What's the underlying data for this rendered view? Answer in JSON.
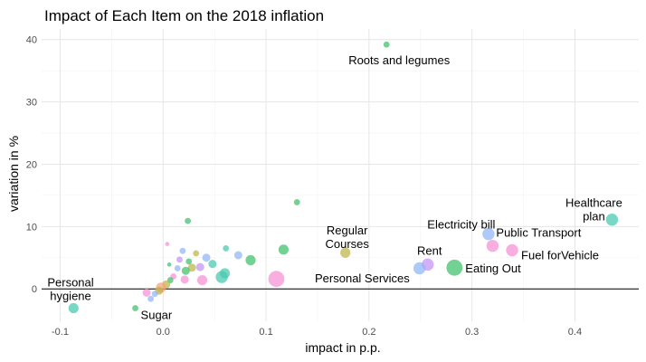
{
  "chart_data": {
    "type": "scatter",
    "title": "Impact of Each Item on the 2018 inflation",
    "xlabel": "impact in p.p.",
    "ylabel": "variation in %",
    "xlim": [
      -0.118,
      0.462
    ],
    "ylim": [
      -5.2,
      41.7
    ],
    "x_ticks": [
      -0.1,
      0.0,
      0.1,
      0.2,
      0.3,
      0.4
    ],
    "x_tick_labels": [
      "-0.1",
      "0.0",
      "0.1",
      "0.2",
      "0.3",
      "0.4"
    ],
    "y_ticks": [
      0,
      10,
      20,
      30,
      40
    ],
    "y_tick_labels": [
      "0",
      "10",
      "20",
      "30",
      "40"
    ],
    "grid": true,
    "hline_y": 0,
    "legend": "none",
    "points": [
      {
        "label": "Roots and legumes",
        "x": 0.217,
        "y": 39.2,
        "size": 2,
        "color": "#3dbf6b"
      },
      {
        "label": "",
        "x": 0.13,
        "y": 13.9,
        "size": 2,
        "color": "#3dbf6b"
      },
      {
        "label": "",
        "x": 0.024,
        "y": 10.9,
        "size": 2,
        "color": "#3dbf6b"
      },
      {
        "label": "Healthcare plan",
        "x": 0.436,
        "y": 11.1,
        "size": 5,
        "color": "#45c9ae"
      },
      {
        "label": "Electricity bill",
        "x": 0.316,
        "y": 8.8,
        "size": 5,
        "color": "#8fb5f7"
      },
      {
        "label": "Public Transport",
        "x": 0.32,
        "y": 6.9,
        "size": 5,
        "color": "#f58fd3"
      },
      {
        "label": "Fuel forVehicle",
        "x": 0.339,
        "y": 6.2,
        "size": 5,
        "color": "#f58fd3"
      },
      {
        "label": "Regular Courses",
        "x": 0.177,
        "y": 5.8,
        "size": 4,
        "color": "#bdb547"
      },
      {
        "label": "Rent",
        "x": 0.257,
        "y": 3.9,
        "size": 5,
        "color": "#c392f7"
      },
      {
        "label": "",
        "x": 0.249,
        "y": 3.3,
        "size": 5,
        "color": "#8fb5f7"
      },
      {
        "label": "Eating Out",
        "x": 0.283,
        "y": 3.4,
        "size": 7,
        "color": "#3dbf6b"
      },
      {
        "label": "Personal Services",
        "x": 0.11,
        "y": 1.6,
        "size": 7,
        "color": "#f58fd3"
      },
      {
        "label": "Personal hygiene",
        "x": -0.087,
        "y": -3.1,
        "size": 4,
        "color": "#45c9ae"
      },
      {
        "label": "Sugar",
        "x": -0.027,
        "y": -3.1,
        "size": 2,
        "color": "#3dbf6b"
      },
      {
        "label": "",
        "x": 0.117,
        "y": 6.3,
        "size": 4,
        "color": "#3dbf6b"
      },
      {
        "label": "",
        "x": 0.085,
        "y": 4.6,
        "size": 4,
        "color": "#3dbf6b"
      },
      {
        "label": "",
        "x": 0.073,
        "y": 5.4,
        "size": 3,
        "color": "#8fb5f7"
      },
      {
        "label": "",
        "x": 0.06,
        "y": 2.5,
        "size": 4,
        "color": "#45c9ae"
      },
      {
        "label": "",
        "x": 0.057,
        "y": 1.9,
        "size": 5,
        "color": "#45c9ae"
      },
      {
        "label": "",
        "x": 0.061,
        "y": 6.5,
        "size": 2,
        "color": "#45c9ae"
      },
      {
        "label": "",
        "x": 0.048,
        "y": 4.0,
        "size": 3,
        "color": "#45c9ae"
      },
      {
        "label": "",
        "x": 0.042,
        "y": 5.0,
        "size": 3,
        "color": "#8fb5f7"
      },
      {
        "label": "",
        "x": 0.036,
        "y": 3.5,
        "size": 3,
        "color": "#c392f7"
      },
      {
        "label": "",
        "x": 0.038,
        "y": 1.4,
        "size": 4,
        "color": "#f58fd3"
      },
      {
        "label": "",
        "x": 0.032,
        "y": 5.7,
        "size": 2,
        "color": "#bdb547"
      },
      {
        "label": "",
        "x": 0.028,
        "y": 3.4,
        "size": 3,
        "color": "#bdb547"
      },
      {
        "label": "",
        "x": 0.025,
        "y": 4.4,
        "size": 2,
        "color": "#3dbf6b"
      },
      {
        "label": "",
        "x": 0.022,
        "y": 2.9,
        "size": 3,
        "color": "#3dbf6b"
      },
      {
        "label": "",
        "x": 0.019,
        "y": 6.1,
        "size": 2,
        "color": "#8fb5f7"
      },
      {
        "label": "",
        "x": 0.021,
        "y": 1.5,
        "size": 3,
        "color": "#f58fd3"
      },
      {
        "label": "",
        "x": 0.016,
        "y": 4.7,
        "size": 2,
        "color": "#c392f7"
      },
      {
        "label": "",
        "x": 0.014,
        "y": 3.3,
        "size": 2,
        "color": "#8fb5f7"
      },
      {
        "label": "",
        "x": 0.01,
        "y": 2.0,
        "size": 2,
        "color": "#f58fd3"
      },
      {
        "label": "",
        "x": 0.007,
        "y": 1.4,
        "size": 2,
        "color": "#3dbf6b"
      },
      {
        "label": "",
        "x": 0.004,
        "y": 7.2,
        "size": 1,
        "color": "#f58fd3"
      },
      {
        "label": "",
        "x": 0.006,
        "y": 3.9,
        "size": 1,
        "color": "#3dbf6b"
      },
      {
        "label": "",
        "x": 0.003,
        "y": 0.7,
        "size": 3,
        "color": "#bdb547"
      },
      {
        "label": "",
        "x": -0.002,
        "y": 0.2,
        "size": 4,
        "color": "#f6a07a"
      },
      {
        "label": "",
        "x": -0.004,
        "y": -0.3,
        "size": 3,
        "color": "#bdb547"
      },
      {
        "label": "",
        "x": -0.008,
        "y": -0.8,
        "size": 2,
        "color": "#8fb5f7"
      },
      {
        "label": "",
        "x": -0.012,
        "y": -1.6,
        "size": 2,
        "color": "#8fb5f7"
      },
      {
        "label": "",
        "x": -0.016,
        "y": -0.6,
        "size": 3,
        "color": "#f58fd3"
      }
    ]
  }
}
